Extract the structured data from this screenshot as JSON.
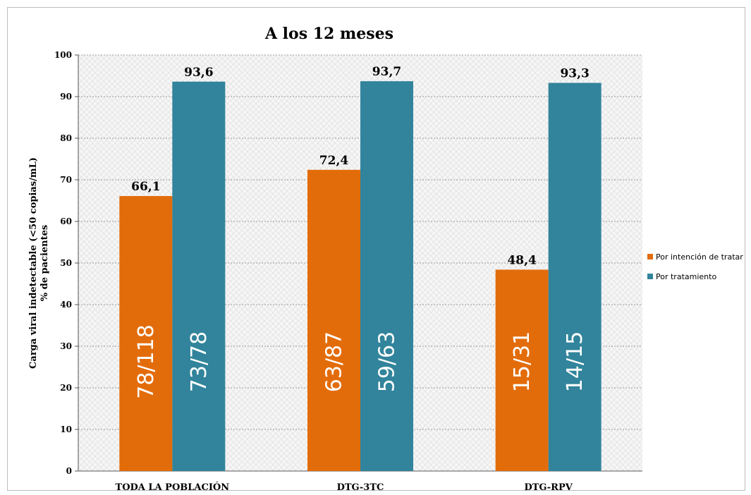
{
  "chart_data": {
    "type": "bar",
    "title": "A los 12 meses",
    "ylabel": [
      "Carga viral indetectable (<50 copias/mL)",
      "% de pacientes"
    ],
    "xlabel": "",
    "ylim": [
      0,
      100
    ],
    "yticks": [
      0,
      10,
      20,
      30,
      40,
      50,
      60,
      70,
      80,
      90,
      100
    ],
    "grid": true,
    "legend_position": "right",
    "categories": [
      "TODA LA POBLACIÓN",
      "DTG-3TC",
      "DTG-RPV"
    ],
    "series": [
      {
        "name": "Por intención de tratar",
        "color": "#e36c0a",
        "values": [
          66.1,
          72.4,
          48.4
        ],
        "value_labels": [
          "66,1",
          "72,4",
          "48,4"
        ],
        "bar_labels": [
          "78/118",
          "63/87",
          "15/31"
        ]
      },
      {
        "name": "Por tratamiento",
        "color": "#31849b",
        "values": [
          93.6,
          93.7,
          93.3
        ],
        "value_labels": [
          "93,6",
          "93,7",
          "93,3"
        ],
        "bar_labels": [
          "73/78",
          "59/63",
          "14/15"
        ]
      }
    ]
  }
}
